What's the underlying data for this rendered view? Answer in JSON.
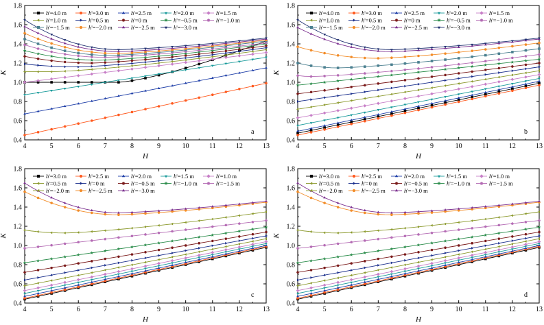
{
  "chart_data": [
    {
      "type": "line",
      "panel_label": "a",
      "xlabel": "H",
      "ylabel": "K",
      "xlim": [
        4,
        13
      ],
      "ylim": [
        0.4,
        1.8
      ],
      "xticks": [
        4,
        5,
        6,
        7,
        8,
        9,
        10,
        11,
        12,
        13
      ],
      "yticks": [
        0.4,
        0.6,
        0.8,
        1.0,
        1.2,
        1.4,
        1.6,
        1.8
      ],
      "legend_position": "top-left",
      "series": [
        {
          "name": "h'=4.0 m",
          "color": "#000000",
          "marker": "square",
          "endpoints": [
            1.0,
            1.43
          ],
          "minimum": {
            "H": 7.5,
            "K": 1.0
          }
        },
        {
          "name": "h'=3.0 m",
          "color": "#ff5a1f",
          "marker": "circle",
          "endpoints": [
            0.45,
            0.99
          ],
          "minimum": {
            "H": 4.0,
            "K": 0.45
          }
        },
        {
          "name": "h'=2.5 m",
          "color": "#1f3fa8",
          "marker": "triangle-up",
          "endpoints": [
            0.67,
            1.15
          ],
          "minimum": {
            "H": 4.0,
            "K": 0.67
          }
        },
        {
          "name": "h'=2.0 m",
          "color": "#1a9b9b",
          "marker": "triangle-down",
          "endpoints": [
            0.87,
            1.26
          ],
          "minimum": {
            "H": 4.0,
            "K": 0.87
          }
        },
        {
          "name": "h'=1.5 m",
          "color": "#c77fc7",
          "marker": "diamond",
          "endpoints": [
            1.0,
            1.31
          ],
          "minimum": {
            "H": 4.0,
            "K": 1.0
          }
        },
        {
          "name": "h'=1.0 m",
          "color": "#8c9a2e",
          "marker": "triangle-left",
          "endpoints": [
            1.11,
            1.34
          ],
          "minimum": {
            "H": 5.0,
            "K": 1.11
          }
        },
        {
          "name": "h'=0.5 m",
          "color": "#1a2f8c",
          "marker": "triangle-right",
          "endpoints": [
            1.19,
            1.36
          ],
          "minimum": {
            "H": 6.0,
            "K": 1.16
          }
        },
        {
          "name": "h'=0 m",
          "color": "#7a1a1a",
          "marker": "hexagon",
          "endpoints": [
            1.27,
            1.38
          ],
          "minimum": {
            "H": 6.5,
            "K": 1.2
          }
        },
        {
          "name": "h'=-0.5 m",
          "color": "#2a8c4a",
          "marker": "star",
          "endpoints": [
            1.33,
            1.4
          ],
          "minimum": {
            "H": 6.8,
            "K": 1.23
          }
        },
        {
          "name": "h'=-1.0 m",
          "color": "#b46bb4",
          "marker": "pentagon",
          "endpoints": [
            1.39,
            1.41
          ],
          "minimum": {
            "H": 7.0,
            "K": 1.26
          }
        },
        {
          "name": "h'=-1.5 m",
          "color": "#4a7f8f",
          "marker": "square",
          "endpoints": [
            1.45,
            1.43
          ],
          "minimum": {
            "H": 7.2,
            "K": 1.28
          }
        },
        {
          "name": "h'=-2.0 m",
          "color": "#f28c28",
          "marker": "circle",
          "endpoints": [
            1.51,
            1.44
          ],
          "minimum": {
            "H": 7.4,
            "K": 1.3
          }
        },
        {
          "name": "h'=-2.5 m",
          "color": "#7b2f8f",
          "marker": "triangle-up",
          "endpoints": [
            1.58,
            1.45
          ],
          "minimum": {
            "H": 7.5,
            "K": 1.32
          }
        },
        {
          "name": "h'=-3.0 m",
          "color": "#203070",
          "marker": "triangle-down",
          "endpoints": [
            1.65,
            1.46
          ],
          "minimum": {
            "H": 7.5,
            "K": 1.34
          }
        }
      ]
    },
    {
      "type": "line",
      "panel_label": "b",
      "xlabel": "H",
      "ylabel": "K",
      "xlim": [
        4,
        13
      ],
      "ylim": [
        0.4,
        1.8
      ],
      "xticks": [
        4,
        5,
        6,
        7,
        8,
        9,
        10,
        11,
        12,
        13
      ],
      "yticks": [
        0.4,
        0.6,
        0.8,
        1.0,
        1.2,
        1.4,
        1.6,
        1.8
      ],
      "legend_position": "top-left",
      "series": [
        {
          "name": "h'=4.0 m",
          "color": "#000000",
          "marker": "square",
          "endpoints": [
            0.47,
            0.99
          ],
          "minimum": {
            "H": 4.0,
            "K": 0.47
          }
        },
        {
          "name": "h'=3.0 m",
          "color": "#ff5a1f",
          "marker": "circle",
          "endpoints": [
            0.45,
            0.97
          ],
          "minimum": {
            "H": 4.0,
            "K": 0.45
          }
        },
        {
          "name": "h'=2.5 m",
          "color": "#1f3fa8",
          "marker": "triangle-up",
          "endpoints": [
            0.49,
            1.01
          ],
          "minimum": {
            "H": 4.0,
            "K": 0.49
          }
        },
        {
          "name": "h'=2.0 m",
          "color": "#1a9b9b",
          "marker": "triangle-down",
          "endpoints": [
            0.55,
            1.04
          ],
          "minimum": {
            "H": 4.0,
            "K": 0.55
          }
        },
        {
          "name": "h'=1.5 m",
          "color": "#c77fc7",
          "marker": "diamond",
          "endpoints": [
            0.63,
            1.08
          ],
          "minimum": {
            "H": 4.0,
            "K": 0.63
          }
        },
        {
          "name": "h'=1.0 m",
          "color": "#8c9a2e",
          "marker": "triangle-left",
          "endpoints": [
            0.72,
            1.12
          ],
          "minimum": {
            "H": 4.0,
            "K": 0.72
          }
        },
        {
          "name": "h'=0.5 m",
          "color": "#1a2f8c",
          "marker": "triangle-right",
          "endpoints": [
            0.8,
            1.16
          ],
          "minimum": {
            "H": 4.0,
            "K": 0.8
          }
        },
        {
          "name": "h'=0 m",
          "color": "#7a1a1a",
          "marker": "hexagon",
          "endpoints": [
            0.88,
            1.2
          ],
          "minimum": {
            "H": 4.0,
            "K": 0.88
          }
        },
        {
          "name": "h'=-0.5 m",
          "color": "#2a8c4a",
          "marker": "star",
          "endpoints": [
            0.97,
            1.24
          ],
          "minimum": {
            "H": 4.0,
            "K": 0.97
          }
        },
        {
          "name": "h'=-1.0 m",
          "color": "#b46bb4",
          "marker": "pentagon",
          "endpoints": [
            1.07,
            1.29
          ],
          "minimum": {
            "H": 4.5,
            "K": 1.06
          }
        },
        {
          "name": "h'=-1.5 m",
          "color": "#4a7f8f",
          "marker": "square",
          "endpoints": [
            1.2,
            1.35
          ],
          "minimum": {
            "H": 5.5,
            "K": 1.15
          }
        },
        {
          "name": "h'=-2.0 m",
          "color": "#f28c28",
          "marker": "circle",
          "endpoints": [
            1.37,
            1.41
          ],
          "minimum": {
            "H": 7.0,
            "K": 1.25
          }
        },
        {
          "name": "h'=-2.5 m",
          "color": "#7b2f8f",
          "marker": "triangle-up",
          "endpoints": [
            1.57,
            1.45
          ],
          "minimum": {
            "H": 7.5,
            "K": 1.32
          }
        },
        {
          "name": "h'=-3.0 m",
          "color": "#203070",
          "marker": "triangle-down",
          "endpoints": [
            1.65,
            1.46
          ],
          "minimum": {
            "H": 7.5,
            "K": 1.34
          }
        }
      ]
    },
    {
      "type": "line",
      "panel_label": "c",
      "xlabel": "H",
      "ylabel": "K",
      "xlim": [
        4,
        13
      ],
      "ylim": [
        0.4,
        1.8
      ],
      "xticks": [
        4,
        5,
        6,
        7,
        8,
        9,
        10,
        11,
        12,
        13
      ],
      "yticks": [
        0.4,
        0.6,
        0.8,
        1.0,
        1.2,
        1.4,
        1.6,
        1.8
      ],
      "legend_position": "top-left",
      "series": [
        {
          "name": "h'=3.0 m",
          "color": "#000000",
          "marker": "square",
          "endpoints": [
            0.44,
            0.98
          ],
          "minimum": {
            "H": 4.0,
            "K": 0.44
          }
        },
        {
          "name": "h'=2.5 m",
          "color": "#ff5a1f",
          "marker": "circle",
          "endpoints": [
            0.45,
            0.99
          ],
          "minimum": {
            "H": 4.0,
            "K": 0.45
          }
        },
        {
          "name": "h'=2.0 m",
          "color": "#1f3fa8",
          "marker": "triangle-up",
          "endpoints": [
            0.47,
            1.0
          ],
          "minimum": {
            "H": 4.0,
            "K": 0.47
          }
        },
        {
          "name": "h'=1.5 m",
          "color": "#1a9b9b",
          "marker": "triangle-down",
          "endpoints": [
            0.5,
            1.02
          ],
          "minimum": {
            "H": 4.0,
            "K": 0.5
          }
        },
        {
          "name": "h'=1.0 m",
          "color": "#c77fc7",
          "marker": "diamond",
          "endpoints": [
            0.53,
            1.04
          ],
          "minimum": {
            "H": 4.0,
            "K": 0.53
          }
        },
        {
          "name": "h'=0.5 m",
          "color": "#8c9a2e",
          "marker": "triangle-left",
          "endpoints": [
            0.58,
            1.07
          ],
          "minimum": {
            "H": 4.0,
            "K": 0.58
          }
        },
        {
          "name": "h'=0 m",
          "color": "#1a2f8c",
          "marker": "triangle-right",
          "endpoints": [
            0.64,
            1.1
          ],
          "minimum": {
            "H": 4.0,
            "K": 0.64
          }
        },
        {
          "name": "h'=-0.5 m",
          "color": "#7a1a1a",
          "marker": "hexagon",
          "endpoints": [
            0.72,
            1.14
          ],
          "minimum": {
            "H": 4.0,
            "K": 0.72
          }
        },
        {
          "name": "h'=-1.0 m",
          "color": "#2a8c4a",
          "marker": "star",
          "endpoints": [
            0.82,
            1.19
          ],
          "minimum": {
            "H": 4.0,
            "K": 0.82
          }
        },
        {
          "name": "h'=-1.5 m",
          "color": "#b46bb4",
          "marker": "pentagon",
          "endpoints": [
            0.97,
            1.26
          ],
          "minimum": {
            "H": 4.0,
            "K": 0.97
          }
        },
        {
          "name": "h'=-2.0 m",
          "color": "#8c9a2e",
          "marker": "triangle-left",
          "endpoints": [
            1.16,
            1.35
          ],
          "minimum": {
            "H": 5.5,
            "K": 1.13
          }
        },
        {
          "name": "h'=-2.5 m",
          "color": "#f28c28",
          "marker": "circle",
          "endpoints": [
            1.56,
            1.45
          ],
          "minimum": {
            "H": 7.5,
            "K": 1.32
          }
        },
        {
          "name": "h'=-3.0 m",
          "color": "#7b2f8f",
          "marker": "triangle-up",
          "endpoints": [
            1.65,
            1.46
          ],
          "minimum": {
            "H": 7.5,
            "K": 1.34
          }
        }
      ]
    },
    {
      "type": "line",
      "panel_label": "d",
      "xlabel": "H",
      "ylabel": "K",
      "xlim": [
        4,
        13
      ],
      "ylim": [
        0.4,
        1.8
      ],
      "xticks": [
        4,
        5,
        6,
        7,
        8,
        9,
        10,
        11,
        12,
        13
      ],
      "yticks": [
        0.4,
        0.6,
        0.8,
        1.0,
        1.2,
        1.4,
        1.6,
        1.8
      ],
      "legend_position": "top-left",
      "series": [
        {
          "name": "h'=3.0 m",
          "color": "#000000",
          "marker": "square",
          "endpoints": [
            0.44,
            0.98
          ],
          "minimum": {
            "H": 4.0,
            "K": 0.44
          }
        },
        {
          "name": "h'=2.5 m",
          "color": "#ff5a1f",
          "marker": "circle",
          "endpoints": [
            0.45,
            0.99
          ],
          "minimum": {
            "H": 4.0,
            "K": 0.45
          }
        },
        {
          "name": "h'=2.0 m",
          "color": "#1f3fa8",
          "marker": "triangle-up",
          "endpoints": [
            0.47,
            1.0
          ],
          "minimum": {
            "H": 4.0,
            "K": 0.47
          }
        },
        {
          "name": "h'=1.5 m",
          "color": "#1a9b9b",
          "marker": "triangle-down",
          "endpoints": [
            0.5,
            1.02
          ],
          "minimum": {
            "H": 4.0,
            "K": 0.5
          }
        },
        {
          "name": "h'=1.0 m",
          "color": "#c77fc7",
          "marker": "diamond",
          "endpoints": [
            0.53,
            1.04
          ],
          "minimum": {
            "H": 4.0,
            "K": 0.53
          }
        },
        {
          "name": "h'=0.5 m",
          "color": "#8c9a2e",
          "marker": "triangle-left",
          "endpoints": [
            0.58,
            1.07
          ],
          "minimum": {
            "H": 4.0,
            "K": 0.58
          }
        },
        {
          "name": "h'=0 m",
          "color": "#1a2f8c",
          "marker": "triangle-right",
          "endpoints": [
            0.64,
            1.1
          ],
          "minimum": {
            "H": 4.0,
            "K": 0.64
          }
        },
        {
          "name": "h'=-0.5 m",
          "color": "#7a1a1a",
          "marker": "hexagon",
          "endpoints": [
            0.72,
            1.14
          ],
          "minimum": {
            "H": 4.0,
            "K": 0.72
          }
        },
        {
          "name": "h'=-1.0 m",
          "color": "#2a8c4a",
          "marker": "star",
          "endpoints": [
            0.82,
            1.19
          ],
          "minimum": {
            "H": 4.0,
            "K": 0.82
          }
        },
        {
          "name": "h'=-1.5 m",
          "color": "#b46bb4",
          "marker": "pentagon",
          "endpoints": [
            0.97,
            1.26
          ],
          "minimum": {
            "H": 4.0,
            "K": 0.97
          }
        },
        {
          "name": "h'=-2.0 m",
          "color": "#8c9a2e",
          "marker": "triangle-left",
          "endpoints": [
            1.16,
            1.35
          ],
          "minimum": {
            "H": 5.5,
            "K": 1.13
          }
        },
        {
          "name": "h'=-2.5 m",
          "color": "#f28c28",
          "marker": "circle",
          "endpoints": [
            1.56,
            1.45
          ],
          "minimum": {
            "H": 7.5,
            "K": 1.32
          }
        },
        {
          "name": "h'=-3.0 m",
          "color": "#7b2f8f",
          "marker": "triangle-up",
          "endpoints": [
            1.65,
            1.46
          ],
          "minimum": {
            "H": 7.5,
            "K": 1.34
          }
        }
      ]
    }
  ]
}
